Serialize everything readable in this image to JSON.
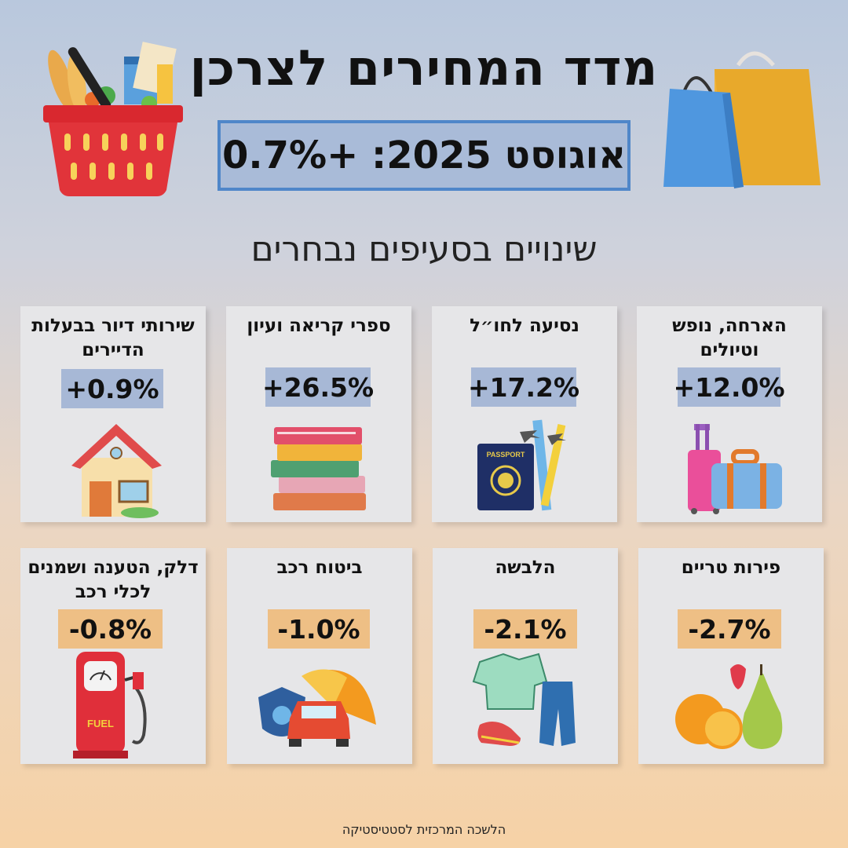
{
  "header": {
    "title": "מדד המחירים לצרכן",
    "headline": "אוגוסט 2025: +0.7%",
    "subtitle": "שינויים בסעיפים נבחרים"
  },
  "cards": [
    {
      "title": "הארחה, נופש וטיולים",
      "value": "+12.0%",
      "direction": "up",
      "icon": "luggage-icon"
    },
    {
      "title": "נסיעה לחו״ל",
      "value": "+17.2%",
      "direction": "up",
      "icon": "passport-icon"
    },
    {
      "title": "ספרי קריאה ועיון",
      "value": "+26.5%",
      "direction": "up",
      "icon": "books-icon"
    },
    {
      "title": "שירותי דיור בבעלות הדיירים",
      "value": "+0.9%",
      "direction": "up",
      "icon": "house-icon"
    },
    {
      "title": "פירות טריים",
      "value": "-2.7%",
      "direction": "down",
      "icon": "fruit-icon"
    },
    {
      "title": "הלבשה",
      "value": "-2.1%",
      "direction": "down",
      "icon": "clothing-icon"
    },
    {
      "title": "ביטוח רכב",
      "value": "-1.0%",
      "direction": "down",
      "icon": "car-insurance-icon"
    },
    {
      "title": "דלק, הטענה ושמנים לכלי רכב",
      "value": "-0.8%",
      "direction": "down",
      "icon": "fuel-pump-icon"
    }
  ],
  "fuel_label": "FUEL",
  "passport_label": "PASSPORT",
  "colors": {
    "up_badge": "#a7b8d6",
    "down_badge": "#eebf85",
    "headline_border": "#4f86c9"
  },
  "footer": "הלשכה המרכזית לסטטיסטיקה"
}
